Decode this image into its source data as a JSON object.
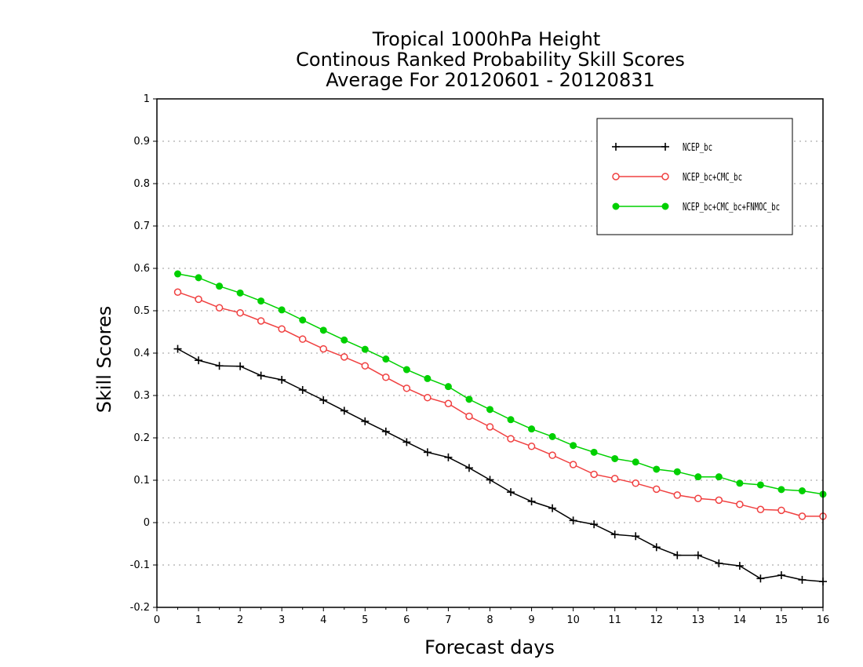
{
  "chart_data": {
    "type": "line",
    "title": [
      "Tropical 1000hPa Height",
      "Continous Ranked Probability Skill Scores",
      "Average For 20120601 - 20120831"
    ],
    "xlabel": "Forecast days",
    "ylabel": "Skill Scores",
    "xlim": [
      0,
      16
    ],
    "ylim": [
      -0.2,
      1
    ],
    "xticks": [
      "0",
      "1",
      "2",
      "3",
      "4",
      "5",
      "6",
      "7",
      "8",
      "9",
      "10",
      "11",
      "12",
      "13",
      "14",
      "15",
      "16"
    ],
    "yticks": [
      "-0.2",
      "-0.1",
      "0",
      "0.1",
      "0.2",
      "0.3",
      "0.4",
      "0.5",
      "0.6",
      "0.7",
      "0.8",
      "0.9",
      "1"
    ],
    "grid": "horizontal-dotted",
    "legend_position": "top-right",
    "x": [
      0.5,
      1,
      1.5,
      2,
      2.5,
      3,
      3.5,
      4,
      4.5,
      5,
      5.5,
      6,
      6.5,
      7,
      7.5,
      8,
      8.5,
      9,
      9.5,
      10,
      10.5,
      11,
      11.5,
      12,
      12.5,
      13,
      13.5,
      14,
      14.5,
      15,
      15.5,
      16
    ],
    "series": [
      {
        "name": "NCEP_bc",
        "color": "#000000",
        "marker": "plus",
        "values": [
          0.41,
          0.383,
          0.37,
          0.369,
          0.347,
          0.337,
          0.313,
          0.289,
          0.264,
          0.239,
          0.215,
          0.19,
          0.166,
          0.154,
          0.129,
          0.101,
          0.072,
          0.05,
          0.034,
          0.005,
          -0.004,
          -0.028,
          -0.032,
          -0.058,
          -0.077,
          -0.077,
          -0.096,
          -0.102,
          -0.132,
          -0.124,
          -0.135,
          -0.139
        ]
      },
      {
        "name": "NCEP_bc+CMC_bc",
        "color": "#f04040",
        "marker": "open-circle",
        "values": [
          0.544,
          0.527,
          0.507,
          0.495,
          0.476,
          0.457,
          0.433,
          0.41,
          0.391,
          0.37,
          0.343,
          0.317,
          0.295,
          0.281,
          0.251,
          0.226,
          0.198,
          0.18,
          0.159,
          0.137,
          0.114,
          0.104,
          0.093,
          0.079,
          0.065,
          0.057,
          0.053,
          0.043,
          0.031,
          0.029,
          0.015,
          0.015
        ]
      },
      {
        "name": "NCEP_bc+CMC_bc+FNMOC_bc",
        "color": "#00d000",
        "marker": "filled-circle",
        "values": [
          0.587,
          0.578,
          0.558,
          0.542,
          0.523,
          0.502,
          0.478,
          0.454,
          0.431,
          0.409,
          0.386,
          0.361,
          0.34,
          0.321,
          0.291,
          0.267,
          0.243,
          0.221,
          0.203,
          0.182,
          0.166,
          0.151,
          0.143,
          0.126,
          0.12,
          0.108,
          0.108,
          0.093,
          0.089,
          0.078,
          0.075,
          0.067
        ]
      }
    ]
  }
}
